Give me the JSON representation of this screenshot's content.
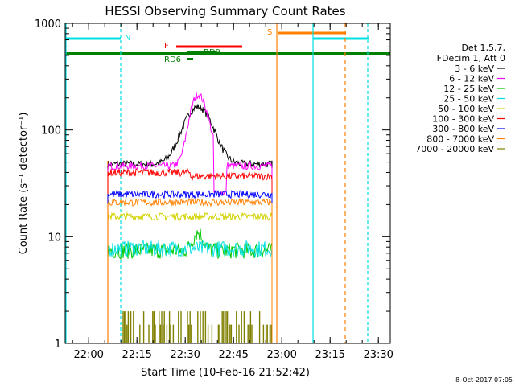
{
  "chart_data": {
    "type": "line",
    "title": "HESSI Observing Summary Count Rates",
    "xlabel": "Start Time (10-Feb-16 21:52:42)",
    "ylabel": "Count Rate (s⁻¹ detector⁻¹)",
    "yscale": "log",
    "ylim": [
      1,
      1000
    ],
    "xlim_minutes_since_start": [
      0,
      101
    ],
    "x_ticks": [
      {
        "label": "22:00",
        "min": 7.3
      },
      {
        "label": "22:15",
        "min": 22.3
      },
      {
        "label": "22:30",
        "min": 37.3
      },
      {
        "label": "22:45",
        "min": 52.3
      },
      {
        "label": "23:00",
        "min": 67.3
      },
      {
        "label": "23:15",
        "min": 82.3
      },
      {
        "label": "23:30",
        "min": 97.3
      }
    ],
    "y_ticks": [
      {
        "label": "1",
        "v": 1
      },
      {
        "label": "10",
        "v": 10
      },
      {
        "label": "100",
        "v": 100
      },
      {
        "label": "1000",
        "v": 1000
      }
    ],
    "legend_header": [
      "Det 1,5,7,",
      "FDecim 1, Att 0"
    ],
    "legend_placement": "right",
    "series": [
      {
        "name": "3 - 6 keV",
        "color": "#000000",
        "base": 48,
        "peak": 165
      },
      {
        "name": "6 - 12 keV",
        "color": "#ff00ff",
        "base": 46,
        "peak": 215
      },
      {
        "name": "12 - 25 keV",
        "color": "#00c800",
        "base": 7.5,
        "peak": 11
      },
      {
        "name": "25 - 50 keV",
        "color": "#00e0e0",
        "base": 7.8,
        "peak": 9
      },
      {
        "name": "50 - 100 keV",
        "color": "#d2d200",
        "base": 15.5,
        "peak": 16
      },
      {
        "name": "100 - 300 keV",
        "color": "#ff0000",
        "base": 40,
        "peak": 42
      },
      {
        "name": "300 - 800 keV",
        "color": "#0000ff",
        "base": 25,
        "peak": 26
      },
      {
        "name": "800 - 7000 keV",
        "color": "#ff8000",
        "base": 21,
        "peak": 22
      },
      {
        "name": "7000 - 20000 keV",
        "color": "#808000",
        "base": 1.5,
        "peak": 1.5
      }
    ],
    "annotations": [
      {
        "label": "N",
        "color": "#00e0e0"
      },
      {
        "label": "S",
        "color": "#ff8000"
      },
      {
        "label": "F",
        "color": "#ff0000"
      },
      {
        "label": "RD9",
        "color": "#008000"
      },
      {
        "label": "RD6",
        "color": "#008000"
      }
    ],
    "timestamp": "8-Oct-2017 07:05"
  }
}
